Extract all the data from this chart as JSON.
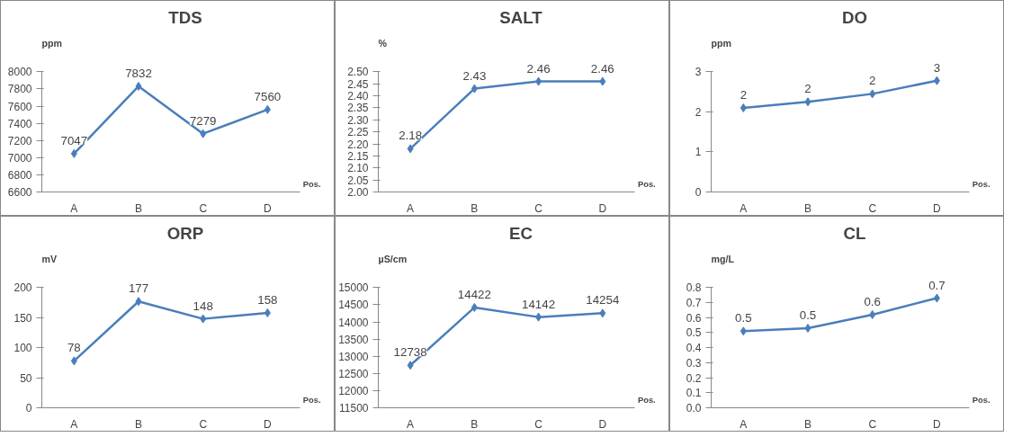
{
  "chart_data": [
    {
      "type": "line",
      "title": "TDS",
      "ylabel": "ppm",
      "xlabel": "Pos.",
      "categories": [
        "A",
        "B",
        "C",
        "D"
      ],
      "series": [
        {
          "color": "#4a7ebb",
          "values": [
            7047,
            7832,
            7279,
            7560
          ]
        }
      ],
      "ylim": [
        6600,
        8000
      ],
      "yticks": [
        6600,
        6800,
        7000,
        7200,
        7400,
        7600,
        7800,
        8000
      ],
      "data_labels": true,
      "marker": "diamond",
      "grid": false
    },
    {
      "type": "line",
      "title": "SALT",
      "ylabel": "%",
      "xlabel": "Pos.",
      "categories": [
        "A",
        "B",
        "C",
        "D"
      ],
      "series": [
        {
          "color": "#4a7ebb",
          "values": [
            2.18,
            2.43,
            2.46,
            2.46
          ]
        }
      ],
      "ylim": [
        2.0,
        2.5
      ],
      "yticks": [
        {
          "value": 2.0,
          "label": "2.00"
        },
        2.05,
        {
          "value": 2.1,
          "label": "2.10"
        },
        2.15,
        {
          "value": 2.2,
          "label": "2.20"
        },
        2.25,
        {
          "value": 2.3,
          "label": "2.30"
        },
        2.35,
        {
          "value": 2.4,
          "label": "2.40"
        },
        2.45,
        {
          "value": 2.5,
          "label": "2.50"
        }
      ],
      "data_labels": true,
      "marker": "diamond",
      "grid": false
    },
    {
      "type": "line",
      "title": "DO",
      "ylabel": "ppm",
      "xlabel": "Pos.",
      "categories": [
        "A",
        "B",
        "C",
        "D"
      ],
      "series": [
        {
          "color": "#4a7ebb",
          "values": [
            2.1,
            2.25,
            2.45,
            2.78
          ],
          "value_labels": [
            "2",
            "2",
            "2",
            "3"
          ]
        }
      ],
      "ylim": [
        0,
        3
      ],
      "yticks": [
        0,
        1,
        2,
        3
      ],
      "marker": "diamond",
      "grid": false
    },
    {
      "type": "line",
      "title": "ORP",
      "ylabel": "mV",
      "xlabel": "Pos.",
      "categories": [
        "A",
        "B",
        "C",
        "D"
      ],
      "series": [
        {
          "color": "#4a7ebb",
          "values": [
            78,
            177,
            148,
            158
          ]
        }
      ],
      "ylim": [
        0,
        200
      ],
      "yticks": [
        0,
        50,
        100,
        150,
        200
      ],
      "data_labels": true,
      "marker": "diamond",
      "grid": false
    },
    {
      "type": "line",
      "title": "EC",
      "ylabel": "µS/cm",
      "xlabel": "Pos.",
      "categories": [
        "A",
        "B",
        "C",
        "D"
      ],
      "series": [
        {
          "color": "#4a7ebb",
          "values": [
            12738,
            14422,
            14142,
            14254
          ]
        }
      ],
      "ylim": [
        11500,
        15000
      ],
      "yticks": [
        11500,
        12000,
        12500,
        13000,
        13500,
        14000,
        14500,
        15000
      ],
      "data_labels": true,
      "marker": "diamond",
      "grid": false
    },
    {
      "type": "line",
      "title": "CL",
      "ylabel": "mg/L",
      "xlabel": "Pos.",
      "categories": [
        "A",
        "B",
        "C",
        "D"
      ],
      "series": [
        {
          "color": "#4a7ebb",
          "values": [
            0.51,
            0.53,
            0.62,
            0.73
          ],
          "value_labels": [
            "0.5",
            "0.5",
            "0.6",
            "0.7"
          ]
        }
      ],
      "ylim": [
        0,
        0.8
      ],
      "yticks": [
        {
          "value": 0,
          "label": "0.0"
        },
        0.1,
        0.2,
        0.3,
        0.4,
        0.5,
        0.6,
        0.7,
        0.8
      ],
      "marker": "diamond",
      "grid": false
    }
  ]
}
